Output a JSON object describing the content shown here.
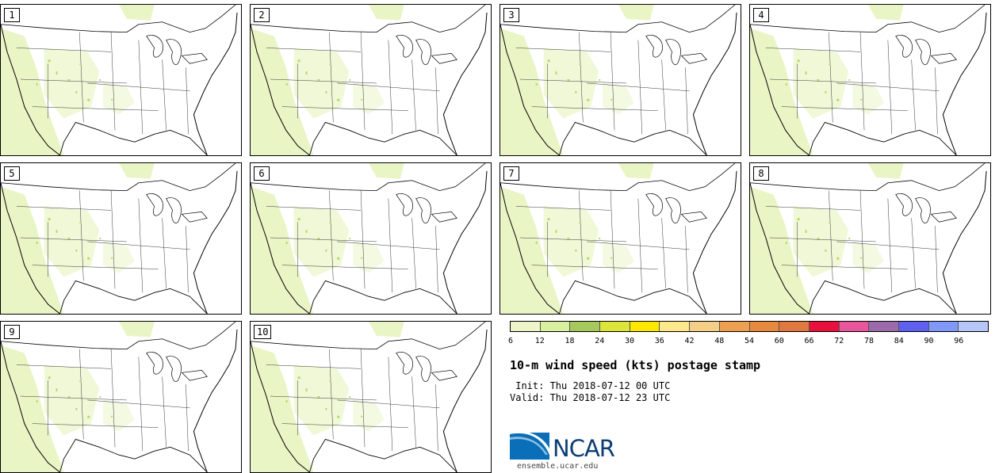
{
  "panels": [
    {
      "label": "1"
    },
    {
      "label": "2"
    },
    {
      "label": "3"
    },
    {
      "label": "4"
    },
    {
      "label": "5"
    },
    {
      "label": "6"
    },
    {
      "label": "7"
    },
    {
      "label": "8"
    },
    {
      "label": "9"
    },
    {
      "label": "10"
    }
  ],
  "colorbar": {
    "ticks": [
      "6",
      "12",
      "18",
      "24",
      "30",
      "36",
      "42",
      "48",
      "54",
      "60",
      "66",
      "72",
      "78",
      "84",
      "90",
      "96"
    ],
    "colors": [
      "#eef5c8",
      "#d9f0a0",
      "#a6c85c",
      "#dde43a",
      "#ffe800",
      "#fde98c",
      "#f5cf88",
      "#ee9f50",
      "#e88a3d",
      "#e07840",
      "#e8103c",
      "#e8579b",
      "#9a6aaa",
      "#6060f0",
      "#8098f8",
      "#b5c6f8"
    ]
  },
  "title": "10-m wind speed (kts) postage stamp",
  "init": " Init: Thu 2018-07-12 00 UTC",
  "valid": "Valid: Thu 2018-07-12 23 UTC",
  "logo": {
    "name": "NCAR",
    "url": "ensemble.ucar.edu"
  }
}
